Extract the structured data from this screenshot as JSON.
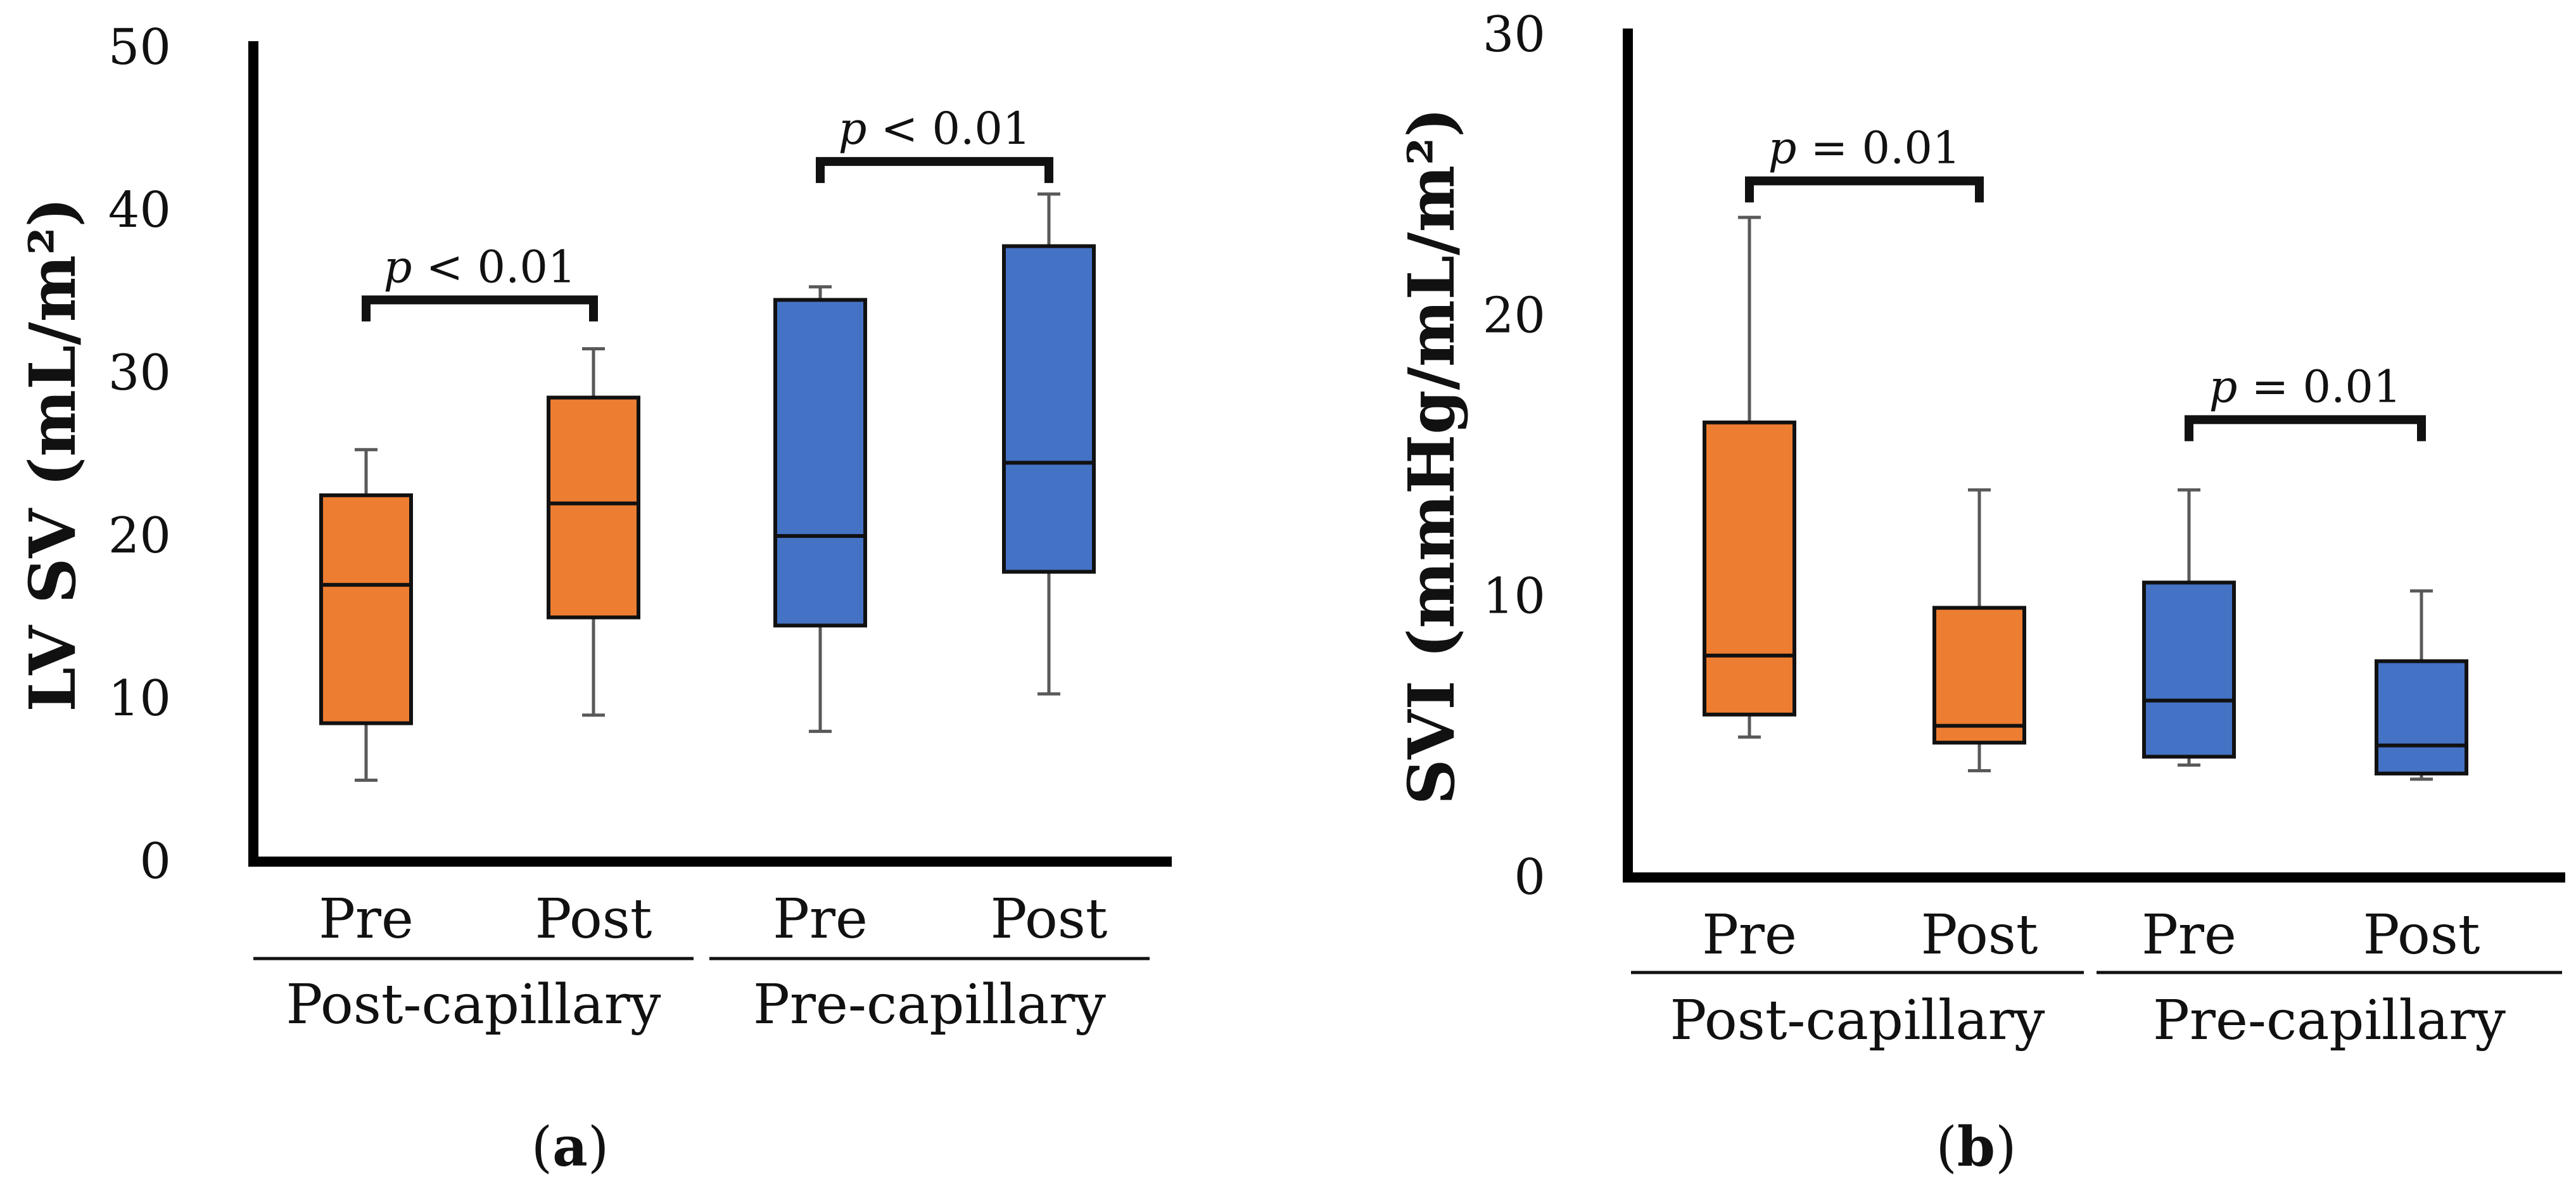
{
  "colors": {
    "post_capillary": "#ED7D31",
    "pre_capillary": "#4472C4",
    "axis": "#000000",
    "whisker": "#595959"
  },
  "chart_data": [
    {
      "type": "box",
      "panel_label": "a",
      "ylabel": "LV SV (mL/m²)",
      "ylim": [
        0,
        50
      ],
      "yticks": [
        0,
        10,
        20,
        30,
        40,
        50
      ],
      "boxes": [
        {
          "group": "Post-capillary",
          "label": "Pre",
          "min": 5.0,
          "q1": 8.5,
          "median": 17.0,
          "q3": 22.5,
          "max": 25.3,
          "color": "#ED7D31"
        },
        {
          "group": "Post-capillary",
          "label": "Post",
          "min": 9.0,
          "q1": 15.0,
          "median": 22.0,
          "q3": 28.5,
          "max": 31.5,
          "color": "#ED7D31"
        },
        {
          "group": "Pre-capillary",
          "label": "Pre",
          "min": 8.0,
          "q1": 14.5,
          "median": 20.0,
          "q3": 34.5,
          "max": 35.3,
          "color": "#4472C4"
        },
        {
          "group": "Pre-capillary",
          "label": "Post",
          "min": 10.3,
          "q1": 17.8,
          "median": 24.5,
          "q3": 37.8,
          "max": 41.0,
          "color": "#4472C4"
        }
      ],
      "groups": [
        "Post-capillary",
        "Pre-capillary"
      ],
      "significance": [
        {
          "from": 0,
          "to": 1,
          "y": 34.5,
          "italic": "p",
          "rest": " < 0.01"
        },
        {
          "from": 2,
          "to": 3,
          "y": 43.0,
          "italic": "p",
          "rest": " < 0.01"
        }
      ]
    },
    {
      "type": "box",
      "panel_label": "b",
      "ylabel": "SVI (mmHg/mL/m²)",
      "ylim": [
        0,
        30
      ],
      "yticks": [
        0,
        10,
        20,
        30
      ],
      "boxes": [
        {
          "group": "Post-capillary",
          "label": "Pre",
          "min": 5.0,
          "q1": 5.8,
          "median": 7.9,
          "q3": 16.2,
          "max": 23.5,
          "color": "#ED7D31"
        },
        {
          "group": "Post-capillary",
          "label": "Post",
          "min": 3.8,
          "q1": 4.8,
          "median": 5.4,
          "q3": 9.6,
          "max": 13.8,
          "color": "#ED7D31"
        },
        {
          "group": "Pre-capillary",
          "label": "Pre",
          "min": 4.0,
          "q1": 4.3,
          "median": 6.3,
          "q3": 10.5,
          "max": 13.8,
          "color": "#4472C4"
        },
        {
          "group": "Pre-capillary",
          "label": "Post",
          "min": 3.5,
          "q1": 3.7,
          "median": 4.7,
          "q3": 7.7,
          "max": 10.2,
          "color": "#4472C4"
        }
      ],
      "groups": [
        "Post-capillary",
        "Pre-capillary"
      ],
      "significance": [
        {
          "from": 0,
          "to": 1,
          "y": 24.8,
          "italic": "p",
          "rest": " = 0.01"
        },
        {
          "from": 2,
          "to": 3,
          "y": 16.3,
          "italic": "p",
          "rest": " = 0.01"
        }
      ]
    }
  ]
}
